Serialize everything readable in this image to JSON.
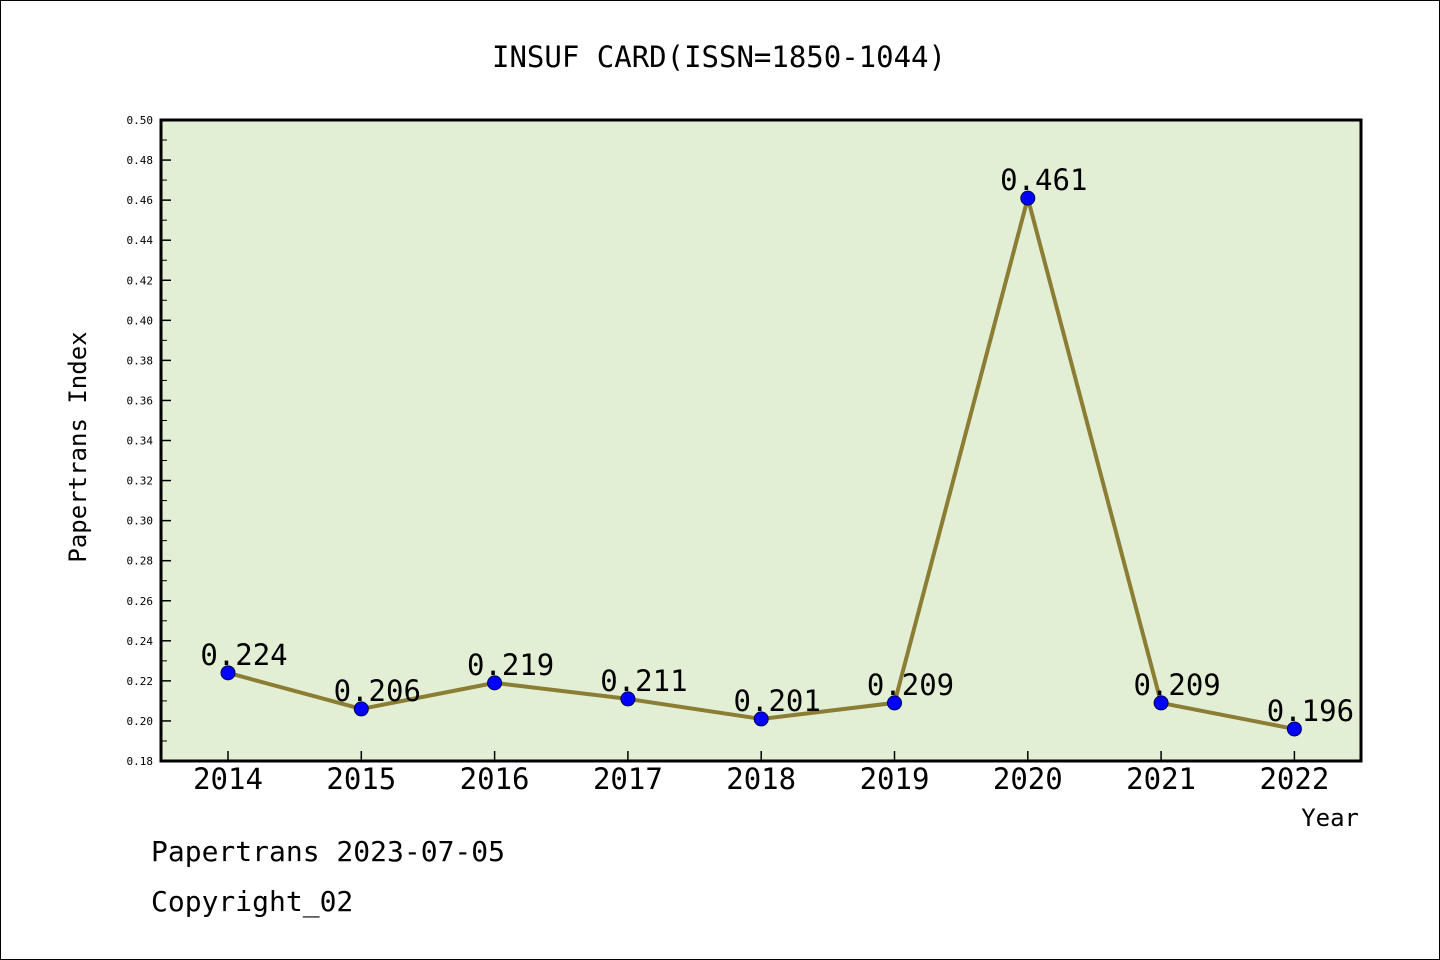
{
  "chart_data": {
    "type": "line",
    "title": "INSUF CARD(ISSN=1850-1044)",
    "xlabel": "Year",
    "ylabel": "Papertrans Index",
    "categories": [
      "2014",
      "2015",
      "2016",
      "2017",
      "2018",
      "2019",
      "2020",
      "2021",
      "2022"
    ],
    "values": [
      0.224,
      0.206,
      0.219,
      0.211,
      0.201,
      0.209,
      0.461,
      0.209,
      0.196
    ],
    "data_labels": [
      "0.224",
      "0.206",
      "0.219",
      "0.211",
      "0.201",
      "0.209",
      "0.461",
      "0.209",
      "0.196"
    ],
    "ylim": [
      0.18,
      0.5
    ],
    "yticks": [
      "0.18",
      "0.20",
      "0.22",
      "0.24",
      "0.26",
      "0.28",
      "0.30",
      "0.32",
      "0.34",
      "0.36",
      "0.38",
      "0.40",
      "0.42",
      "0.44",
      "0.46",
      "0.48",
      "0.50"
    ],
    "grid": false,
    "legend": "none",
    "colors": {
      "plot_background": "#e2efd5",
      "line": "#8b7d34",
      "marker": "#0000ff"
    }
  },
  "footer": {
    "date_line": "Papertrans 2023-07-05",
    "copyright": "Copyright_02"
  }
}
